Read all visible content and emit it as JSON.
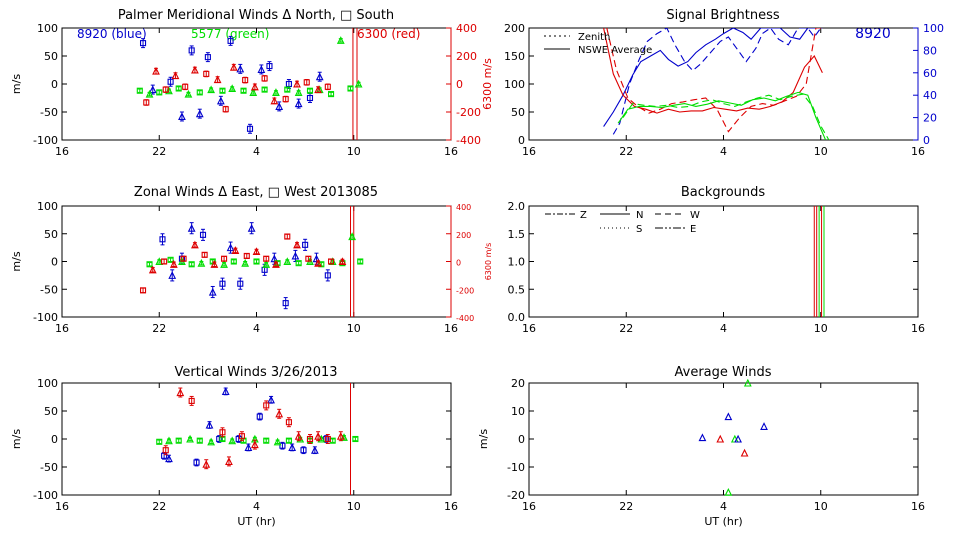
{
  "colors": {
    "blue": "#0000cc",
    "green": "#00dd00",
    "red": "#dd0000",
    "axis": "#000000"
  },
  "chart_data": [
    {
      "id": "meridional",
      "type": "scatter",
      "title": "Palmer Meridional Winds Δ North, □ South",
      "ylabel": "m/s",
      "ylabel_right": "6300 m/s",
      "x_ticks": [
        "16",
        "22",
        "4",
        "10",
        "16"
      ],
      "ylim": [
        -100,
        100
      ],
      "y_ticks": [
        "100",
        "50",
        "0",
        "-50",
        "-100"
      ],
      "right_ylim": [
        -400,
        400
      ],
      "right_ticks": [
        "400",
        "200",
        "0",
        "-200",
        "-400"
      ],
      "legend_blue": "8920 (blue)",
      "legend_green": "5577 (green)",
      "legend_red": "6300 (red)",
      "vlines_hr": [
        33.95,
        34.2
      ],
      "series": [
        {
          "name": "8920",
          "color": "blue",
          "err": 8,
          "x": [
            21.0,
            21.6,
            22.7,
            23.4,
            24.0,
            24.5,
            25.0,
            25.8,
            26.4,
            27.0,
            27.6,
            28.3,
            28.8,
            29.4,
            30.0,
            30.6,
            31.3,
            31.9
          ],
          "y": [
            73,
            -10,
            4,
            -58,
            60,
            -53,
            48,
            -30,
            77,
            27,
            -80,
            26,
            32,
            -40,
            0,
            -35,
            -25,
            13
          ]
        },
        {
          "name": "5577",
          "color": "green",
          "err": 3,
          "x": [
            20.8,
            21.4,
            22.0,
            22.6,
            23.2,
            23.8,
            24.5,
            25.2,
            25.9,
            26.5,
            27.2,
            27.8,
            28.5,
            29.2,
            29.9,
            30.6,
            31.3,
            31.9,
            32.6,
            33.2,
            33.8,
            34.3
          ],
          "y": [
            -12,
            -18,
            -15,
            -12,
            -8,
            -18,
            -15,
            -10,
            -12,
            -8,
            -12,
            -15,
            -10,
            -15,
            -10,
            -15,
            -12,
            -10,
            -18,
            78,
            -8,
            0
          ]
        },
        {
          "name": "6300",
          "color": "red",
          "err": 5,
          "x": [
            21.2,
            21.8,
            22.4,
            23.0,
            23.6,
            24.2,
            24.9,
            25.6,
            26.1,
            26.6,
            27.3,
            27.9,
            28.5,
            29.1,
            29.8,
            30.5,
            31.1,
            31.8,
            32.4
          ],
          "y": [
            -33,
            23,
            -10,
            15,
            -5,
            25,
            18,
            8,
            -45,
            30,
            7,
            -5,
            10,
            -30,
            -27,
            0,
            3,
            -10,
            -5
          ]
        }
      ]
    },
    {
      "id": "zonal",
      "type": "scatter",
      "title": "Zonal Winds Δ East, □ West 2013085",
      "ylabel": "m/s",
      "ylabel_right": "6300 m/s",
      "x_ticks": [
        "16",
        "22",
        "4",
        "10",
        "16"
      ],
      "ylim": [
        -100,
        100
      ],
      "y_ticks": [
        "100",
        "50",
        "0",
        "-50",
        "-100"
      ],
      "right_ylim": [
        -400,
        400
      ],
      "right_ticks": [
        "400",
        "200",
        "0",
        "-200",
        "-400"
      ],
      "vlines_hr": [
        33.8,
        34.0
      ],
      "series": [
        {
          "name": "8920",
          "color": "blue",
          "err": 10,
          "x": [
            22.2,
            22.8,
            23.4,
            24.0,
            24.7,
            25.3,
            25.9,
            26.4,
            27.0,
            27.7,
            28.5,
            29.1,
            29.8,
            30.4,
            31.0,
            31.7,
            32.4
          ],
          "y": [
            40,
            -25,
            5,
            60,
            48,
            -55,
            -40,
            25,
            -40,
            60,
            -15,
            5,
            -75,
            10,
            30,
            5,
            -25
          ]
        },
        {
          "name": "5577",
          "color": "green",
          "err": 3,
          "x": [
            21.4,
            22.0,
            22.7,
            23.4,
            24.0,
            24.6,
            25.3,
            26.0,
            26.6,
            27.3,
            28.0,
            28.6,
            29.3,
            29.9,
            30.6,
            31.3,
            32.0,
            32.7,
            33.3,
            33.9,
            34.4
          ],
          "y": [
            -5,
            0,
            3,
            0,
            -5,
            -3,
            0,
            -5,
            0,
            -3,
            0,
            -5,
            -3,
            0,
            -3,
            0,
            -5,
            0,
            -3,
            45,
            0
          ]
        },
        {
          "name": "6300",
          "color": "red",
          "err": 4,
          "x": [
            21.0,
            21.6,
            22.3,
            22.9,
            23.5,
            24.2,
            24.8,
            25.4,
            26.0,
            26.7,
            27.4,
            28.0,
            28.6,
            29.2,
            29.9,
            30.5,
            31.2,
            31.8,
            32.6,
            33.3
          ],
          "y": [
            -52,
            -15,
            0,
            -5,
            5,
            30,
            12,
            -5,
            5,
            20,
            10,
            18,
            5,
            -5,
            45,
            30,
            5,
            -3,
            0,
            0
          ]
        }
      ]
    },
    {
      "id": "vertical",
      "type": "scatter",
      "title": "Vertical Winds 3/26/2013",
      "ylabel": "m/s",
      "xlabel": "UT (hr)",
      "x_ticks": [
        "16",
        "22",
        "4",
        "10",
        "16"
      ],
      "ylim": [
        -100,
        100
      ],
      "y_ticks": [
        "100",
        "50",
        "0",
        "-50",
        "-100"
      ],
      "vlines_hr": [
        33.8
      ],
      "series": [
        {
          "name": "8920",
          "color": "blue",
          "err": 6,
          "x": [
            22.3,
            22.6,
            24.3,
            25.1,
            25.7,
            26.1,
            26.9,
            27.5,
            28.2,
            28.9,
            29.6,
            30.2,
            30.9,
            31.6,
            32.3
          ],
          "y": [
            -30,
            -35,
            -42,
            25,
            0,
            85,
            0,
            -15,
            40,
            70,
            -12,
            -15,
            -20,
            -20,
            0
          ]
        },
        {
          "name": "5577",
          "color": "green",
          "err": 3,
          "x": [
            22.0,
            22.6,
            23.2,
            23.9,
            24.5,
            25.2,
            25.9,
            26.5,
            27.2,
            27.9,
            28.6,
            29.3,
            30.0,
            30.7,
            31.3,
            32.0,
            32.7,
            33.4,
            34.1
          ],
          "y": [
            -5,
            -3,
            -3,
            0,
            -3,
            -5,
            0,
            -3,
            -3,
            0,
            -3,
            -5,
            -3,
            0,
            -3,
            0,
            -3,
            3,
            0
          ]
        },
        {
          "name": "6300",
          "color": "red",
          "err": 8,
          "x": [
            22.4,
            23.3,
            24.0,
            24.9,
            25.9,
            26.3,
            27.1,
            27.9,
            28.6,
            29.4,
            30.0,
            30.6,
            31.3,
            31.8,
            32.4,
            33.2
          ],
          "y": [
            -20,
            83,
            68,
            -45,
            12,
            -40,
            5,
            -10,
            60,
            45,
            30,
            5,
            0,
            5,
            0,
            5
          ]
        }
      ]
    },
    {
      "id": "brightness",
      "type": "line",
      "title": "Signal Brightness",
      "label": "8920",
      "legend": [
        "Zenith",
        "NSWE Average"
      ],
      "x_ticks": [
        "16",
        "22",
        "4",
        "10",
        "16"
      ],
      "ylim": [
        0,
        200
      ],
      "y_ticks": [
        "200",
        "150",
        "100",
        "50",
        "0"
      ],
      "right_ylim": [
        0,
        100
      ],
      "right_ticks": [
        "100",
        "80",
        "60",
        "40",
        "20",
        "0"
      ],
      "series": [
        {
          "name": "8920 Zenith",
          "color": "blue",
          "style": "dash",
          "axis": "right",
          "x": [
            21.2,
            21.6,
            22.2,
            22.8,
            23.3,
            23.9,
            24.5,
            25.0,
            25.6,
            26.1,
            26.6,
            27.2,
            27.8,
            28.3,
            28.9,
            29.4,
            30.0,
            30.4,
            30.9,
            31.4,
            32.0,
            32.6,
            33.2,
            33.6,
            34.0
          ],
          "y": [
            5,
            15,
            50,
            72,
            88,
            95,
            100,
            85,
            70,
            62,
            68,
            78,
            88,
            92,
            80,
            70,
            82,
            95,
            100,
            90,
            85,
            100,
            100,
            92,
            100
          ]
        },
        {
          "name": "8920 NSWE Average",
          "color": "blue",
          "style": "solid",
          "axis": "right",
          "x": [
            20.6,
            21.2,
            21.8,
            22.4,
            22.9,
            23.5,
            24.1,
            24.6,
            25.2,
            25.8,
            26.3,
            26.9,
            27.5,
            28.0,
            28.6,
            29.2,
            29.7,
            30.3,
            30.9,
            31.5,
            32.1,
            32.7,
            33.2,
            33.7,
            34.1
          ],
          "y": [
            12,
            25,
            40,
            58,
            70,
            75,
            80,
            72,
            66,
            70,
            78,
            85,
            90,
            95,
            100,
            96,
            90,
            100,
            100,
            100,
            92,
            90,
            100,
            100,
            100
          ]
        },
        {
          "name": "6300 Zenith",
          "color": "red",
          "style": "dash",
          "axis": "left",
          "x": [
            20.8,
            21.4,
            22.1,
            22.7,
            23.4,
            24.1,
            24.8,
            25.5,
            26.2,
            26.9,
            27.6,
            28.3,
            29.0,
            29.7,
            30.4,
            31.1,
            31.8,
            32.5,
            33.1,
            33.7,
            34.1
          ],
          "y": [
            200,
            125,
            75,
            60,
            48,
            55,
            65,
            68,
            72,
            75,
            55,
            15,
            40,
            60,
            65,
            62,
            70,
            78,
            100,
            200,
            200
          ]
        },
        {
          "name": "6300 NSWE Average",
          "color": "red",
          "style": "solid",
          "axis": "left",
          "x": [
            20.6,
            21.2,
            21.8,
            22.5,
            23.2,
            23.9,
            24.6,
            25.3,
            26.0,
            26.7,
            27.4,
            28.1,
            28.8,
            29.5,
            30.2,
            30.9,
            31.6,
            32.3,
            33.0,
            33.6,
            34.1
          ],
          "y": [
            200,
            118,
            80,
            60,
            55,
            48,
            55,
            50,
            52,
            52,
            58,
            55,
            52,
            57,
            55,
            60,
            68,
            85,
            130,
            150,
            120
          ]
        },
        {
          "name": "5577 Zenith",
          "color": "green",
          "style": "dash",
          "axis": "left",
          "x": [
            21.8,
            22.4,
            23.1,
            23.8,
            24.5,
            25.2,
            25.9,
            26.6,
            27.3,
            28.0,
            28.7,
            29.4,
            30.1,
            30.8,
            31.5,
            32.2,
            32.9,
            33.5,
            34.0,
            34.5
          ],
          "y": [
            40,
            65,
            62,
            60,
            62,
            58,
            60,
            68,
            72,
            65,
            60,
            68,
            75,
            80,
            72,
            78,
            82,
            60,
            25,
            0
          ]
        },
        {
          "name": "5577 NSWE Average",
          "color": "green",
          "style": "solid",
          "axis": "left",
          "x": [
            21.5,
            22.1,
            22.8,
            23.5,
            24.2,
            24.9,
            25.6,
            26.3,
            27.0,
            27.7,
            28.4,
            29.1,
            29.8,
            30.5,
            31.2,
            31.9,
            32.6,
            33.2,
            33.7,
            34.3
          ],
          "y": [
            30,
            55,
            60,
            60,
            58,
            62,
            65,
            60,
            64,
            70,
            66,
            62,
            72,
            75,
            70,
            78,
            85,
            80,
            40,
            0
          ]
        }
      ]
    },
    {
      "id": "backgrounds",
      "type": "line",
      "title": "Backgrounds",
      "legend": [
        "Z",
        "N",
        "W",
        "S",
        "E"
      ],
      "x_ticks": [
        "16",
        "22",
        "4",
        "10",
        "16"
      ],
      "ylim": [
        0,
        2
      ],
      "y_ticks": [
        "2.0",
        "1.5",
        "1.0",
        "0.5",
        "0.0"
      ],
      "vlines": [
        {
          "x": 33.6,
          "color": "red"
        },
        {
          "x": 33.75,
          "color": "red"
        },
        {
          "x": 33.9,
          "color": "green"
        },
        {
          "x": 34.05,
          "color": "red"
        },
        {
          "x": 34.2,
          "color": "green"
        }
      ]
    },
    {
      "id": "average",
      "type": "scatter",
      "title": "Average Winds",
      "xlabel": "UT (hr)",
      "ylabel": "m/s",
      "x_ticks": [
        "16",
        "22",
        "4",
        "10",
        "16"
      ],
      "ylim": [
        -20,
        20
      ],
      "y_ticks": [
        "20",
        "10",
        "0",
        "-10",
        "-20"
      ],
      "points": [
        {
          "x": 26.7,
          "y": 0.5,
          "color": "blue"
        },
        {
          "x": 27.8,
          "y": 0,
          "color": "red"
        },
        {
          "x": 28.3,
          "y": 8,
          "color": "blue"
        },
        {
          "x": 28.7,
          "y": 0,
          "color": "green"
        },
        {
          "x": 28.9,
          "y": 0,
          "color": "blue"
        },
        {
          "x": 29.3,
          "y": -5,
          "color": "red"
        },
        {
          "x": 30.5,
          "y": 4.5,
          "color": "blue"
        },
        {
          "x": 28.3,
          "y": -19,
          "color": "green"
        },
        {
          "x": 29.5,
          "y": 20,
          "color": "green"
        }
      ]
    }
  ]
}
